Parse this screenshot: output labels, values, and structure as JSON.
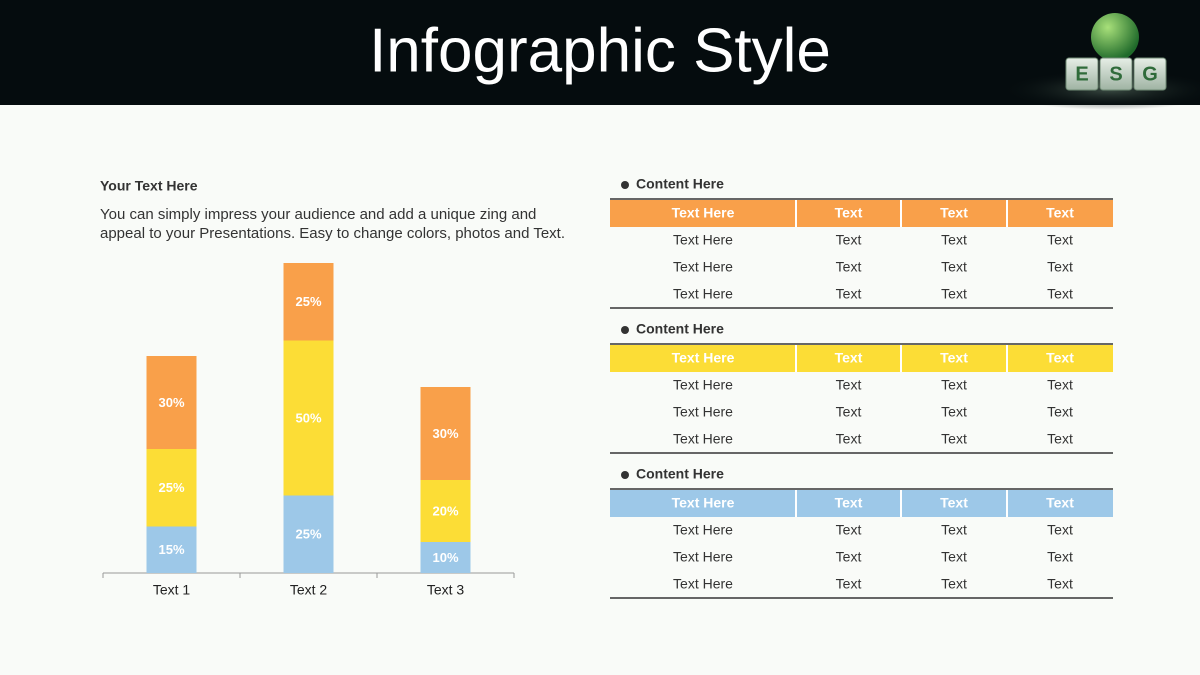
{
  "header": {
    "title": "Infographic Style",
    "logo": [
      "E",
      "S",
      "G"
    ]
  },
  "text": {
    "heading": "Your Text Here",
    "body": "You can simply impress your audience and add a unique zing and appeal to your Presentations. Easy to change colors, photos and Text."
  },
  "chart_data": {
    "type": "bar",
    "stacked": true,
    "categories": [
      "Text 1",
      "Text 2",
      "Text 3"
    ],
    "series": [
      {
        "color": "#9DC8E8",
        "values": [
          15,
          25,
          10
        ],
        "value_labels": [
          "15%",
          "25%",
          "10%"
        ]
      },
      {
        "color": "#FCDD36",
        "values": [
          25,
          50,
          20
        ],
        "value_labels": [
          "25%",
          "50%",
          "20%"
        ]
      },
      {
        "color": "#F9A04A",
        "values": [
          30,
          25,
          30
        ],
        "value_labels": [
          "30%",
          "25%",
          "30%"
        ]
      }
    ]
  },
  "tables": [
    {
      "title": "Content Here",
      "color": "#F9A04A",
      "columns": [
        "Text Here",
        "Text",
        "Text",
        "Text"
      ],
      "rows": [
        [
          "Text Here",
          "Text",
          "Text",
          "Text"
        ],
        [
          "Text Here",
          "Text",
          "Text",
          "Text"
        ],
        [
          "Text Here",
          "Text",
          "Text",
          "Text"
        ]
      ]
    },
    {
      "title": "Content Here",
      "color": "#FCDD36",
      "columns": [
        "Text Here",
        "Text",
        "Text",
        "Text"
      ],
      "rows": [
        [
          "Text Here",
          "Text",
          "Text",
          "Text"
        ],
        [
          "Text Here",
          "Text",
          "Text",
          "Text"
        ],
        [
          "Text Here",
          "Text",
          "Text",
          "Text"
        ]
      ]
    },
    {
      "title": "Content Here",
      "color": "#9DC8E8",
      "columns": [
        "Text Here",
        "Text",
        "Text",
        "Text"
      ],
      "rows": [
        [
          "Text Here",
          "Text",
          "Text",
          "Text"
        ],
        [
          "Text Here",
          "Text",
          "Text",
          "Text"
        ],
        [
          "Text Here",
          "Text",
          "Text",
          "Text"
        ]
      ]
    }
  ]
}
